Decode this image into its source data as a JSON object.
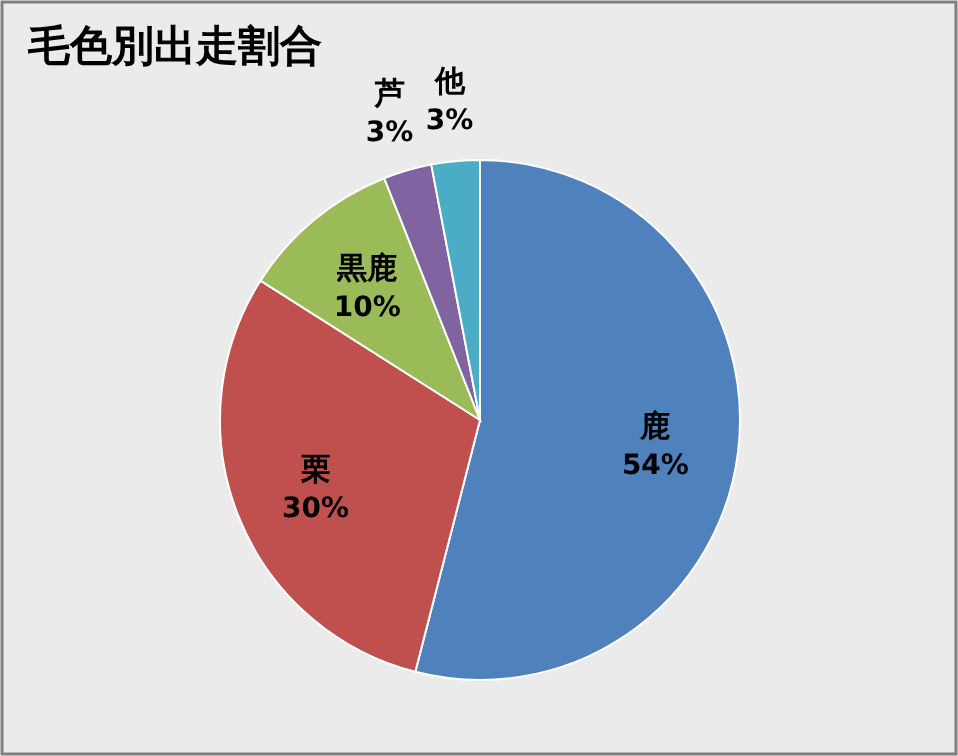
{
  "chart_data": {
    "type": "pie",
    "title": "毛色別出走割合",
    "categories": [
      "鹿",
      "栗",
      "黒鹿",
      "芦",
      "他"
    ],
    "values": [
      54,
      30,
      10,
      3,
      3
    ],
    "colors": [
      "#4f81bd",
      "#c0504d",
      "#9bbb59",
      "#8064a2",
      "#4bacc6"
    ],
    "value_labels": [
      "54%",
      "30%",
      "10%",
      "3%",
      "3%"
    ]
  }
}
